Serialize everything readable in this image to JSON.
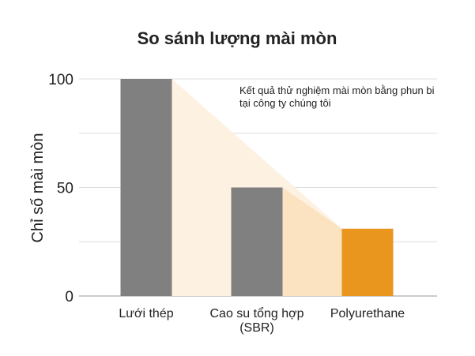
{
  "chart_data": {
    "type": "bar",
    "title": "So sánh lượng mài mòn",
    "ylabel": "Chỉ số mài mòn",
    "xlabel": "",
    "ylim": [
      0,
      100
    ],
    "yticks": [
      0,
      50,
      100
    ],
    "grid": true,
    "categories": [
      {
        "lines": [
          "Lưới thép"
        ]
      },
      {
        "lines": [
          "Cao su tổng hợp",
          "(SBR)"
        ]
      },
      {
        "lines": [
          "Polyurethane"
        ]
      }
    ],
    "values": [
      100,
      50,
      31
    ],
    "annotation": {
      "lines": [
        "Kết quả thử nghiệm mài mòn bằng phun bi",
        "tại công ty chúng tôi"
      ]
    },
    "colors": {
      "bar": "#808080",
      "highlight": "#E8961E",
      "shade_light": "#FDF1E2",
      "shade_dark": "#FBE3C2",
      "grid": "#DDDDDD",
      "axis": "#BBBBBB",
      "text": "#222222"
    }
  }
}
